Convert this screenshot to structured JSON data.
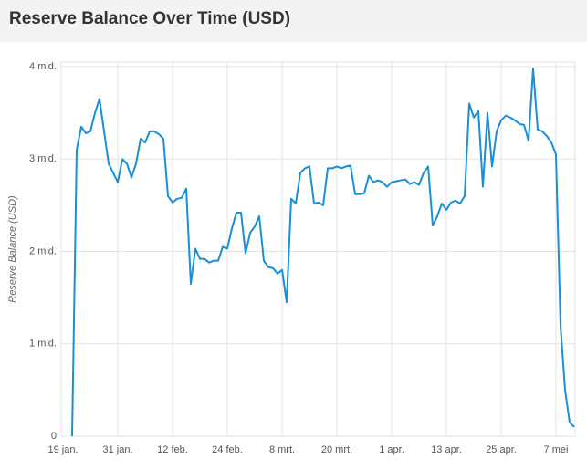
{
  "chart_data": {
    "type": "line",
    "title": "Reserve Balance Over Time (USD)",
    "y_label": "Reserve Balance (USD)",
    "categories": [
      "19 jan.",
      null,
      null,
      null,
      null,
      null,
      null,
      null,
      null,
      null,
      null,
      null,
      "31 jan.",
      null,
      null,
      null,
      null,
      null,
      null,
      null,
      null,
      null,
      null,
      null,
      "12 feb.",
      null,
      null,
      null,
      null,
      null,
      null,
      null,
      null,
      null,
      null,
      null,
      "24 feb.",
      null,
      null,
      null,
      null,
      null,
      null,
      null,
      null,
      null,
      null,
      null,
      "8 mrt.",
      null,
      null,
      null,
      null,
      null,
      null,
      null,
      null,
      null,
      null,
      null,
      "20 mrt.",
      null,
      null,
      null,
      null,
      null,
      null,
      null,
      null,
      null,
      null,
      null,
      "1 apr.",
      null,
      null,
      null,
      null,
      null,
      null,
      null,
      null,
      null,
      null,
      null,
      "13 apr.",
      null,
      null,
      null,
      null,
      null,
      null,
      null,
      null,
      null,
      null,
      null,
      "25 apr.",
      null,
      null,
      null,
      null,
      null,
      null,
      null,
      null,
      null,
      null,
      null,
      "7 mei",
      null,
      null,
      null,
      null
    ],
    "series": [
      {
        "name": "Reserve Balance",
        "color": "#1a8fd6",
        "values": [
          null,
          null,
          0,
          3.1,
          3.35,
          3.28,
          3.3,
          3.5,
          3.65,
          3.3,
          2.95,
          2.85,
          2.75,
          3.0,
          2.95,
          2.8,
          2.95,
          3.22,
          3.18,
          3.3,
          3.3,
          3.27,
          3.22,
          2.6,
          2.53,
          2.57,
          2.58,
          2.68,
          1.65,
          2.03,
          1.92,
          1.92,
          1.88,
          1.9,
          1.9,
          2.05,
          2.03,
          2.25,
          2.42,
          2.42,
          1.98,
          2.2,
          2.27,
          2.38,
          1.9,
          1.83,
          1.82,
          1.76,
          1.8,
          1.45,
          2.57,
          2.52,
          2.85,
          2.9,
          2.92,
          2.52,
          2.53,
          2.5,
          2.9,
          2.9,
          2.92,
          2.9,
          2.92,
          2.93,
          2.62,
          2.62,
          2.63,
          2.82,
          2.75,
          2.77,
          2.75,
          2.7,
          2.75,
          2.76,
          2.77,
          2.78,
          2.73,
          2.75,
          2.72,
          2.85,
          2.92,
          2.28,
          2.38,
          2.52,
          2.45,
          2.53,
          2.55,
          2.52,
          2.6,
          3.6,
          3.45,
          3.52,
          2.7,
          3.5,
          2.92,
          3.3,
          3.42,
          3.47,
          3.45,
          3.42,
          3.38,
          3.37,
          3.2,
          3.98,
          3.32,
          3.3,
          3.25,
          3.18,
          3.05,
          1.2,
          0.5,
          0.15,
          0.1
        ]
      }
    ],
    "ylim": [
      0,
      4.05
    ],
    "yticks": [
      0,
      {
        "value": 1,
        "label": "1 mld."
      },
      {
        "value": 2,
        "label": "2 mld."
      },
      {
        "value": 3,
        "label": "3 mld."
      },
      {
        "value": 4,
        "label": "4 mld."
      }
    ],
    "grid": true
  }
}
